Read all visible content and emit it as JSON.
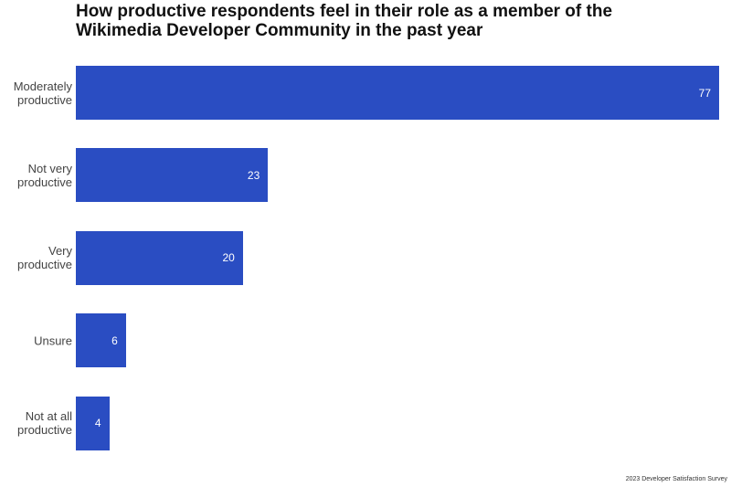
{
  "chart_data": {
    "type": "bar",
    "orientation": "horizontal",
    "title": "How productive respondents feel in their role as a member of the Wikimedia Developer Community in the past year",
    "categories": [
      "Moderately productive",
      "Not very productive",
      "Very productive",
      "Unsure",
      "Not at all productive"
    ],
    "values": [
      77,
      23,
      20,
      6,
      4
    ],
    "color": "#2a4dc2",
    "source": "2023 Developer Satisfaction Survey"
  }
}
